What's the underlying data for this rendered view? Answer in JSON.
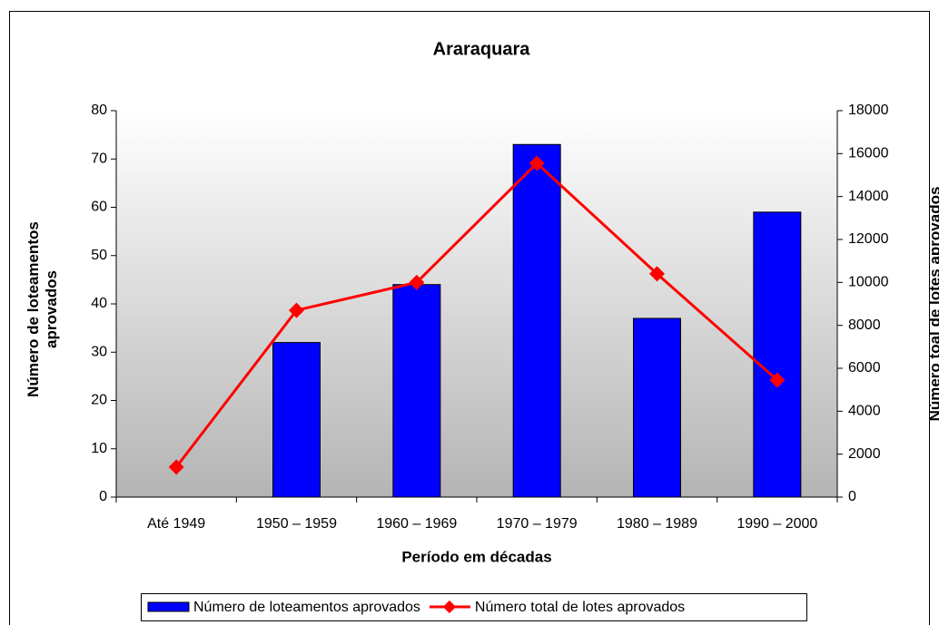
{
  "chart_data": {
    "type": "bar_line",
    "title": "Araraquara",
    "x_label": "Período em décadas",
    "y_label": "Número de loteamentos aprovados",
    "y2_label": "Número toal de lotes aprovados",
    "categories": [
      "Até 1949",
      "1950 – 1959",
      "1960 – 1969",
      "1970 – 1979",
      "1980 – 1989",
      "1990 – 2000"
    ],
    "series": [
      {
        "name": "Número de loteamentos aprovados",
        "type": "bar",
        "color": "#0000ff",
        "values": [
          0,
          32,
          44,
          73,
          37,
          59
        ]
      },
      {
        "name": "Número total de lotes aprovados",
        "type": "line",
        "axis": "y2",
        "color": "#ff0000",
        "values": [
          1400,
          8700,
          10000,
          15550,
          10400,
          5450
        ]
      }
    ],
    "ylim": [
      0,
      80
    ],
    "yticks": [
      0,
      10,
      20,
      30,
      40,
      50,
      60,
      70,
      80
    ],
    "y2lim": [
      0,
      18000
    ],
    "y2ticks": [
      0,
      2000,
      4000,
      6000,
      8000,
      10000,
      12000,
      14000,
      16000,
      18000
    ],
    "legend": "bottom"
  }
}
